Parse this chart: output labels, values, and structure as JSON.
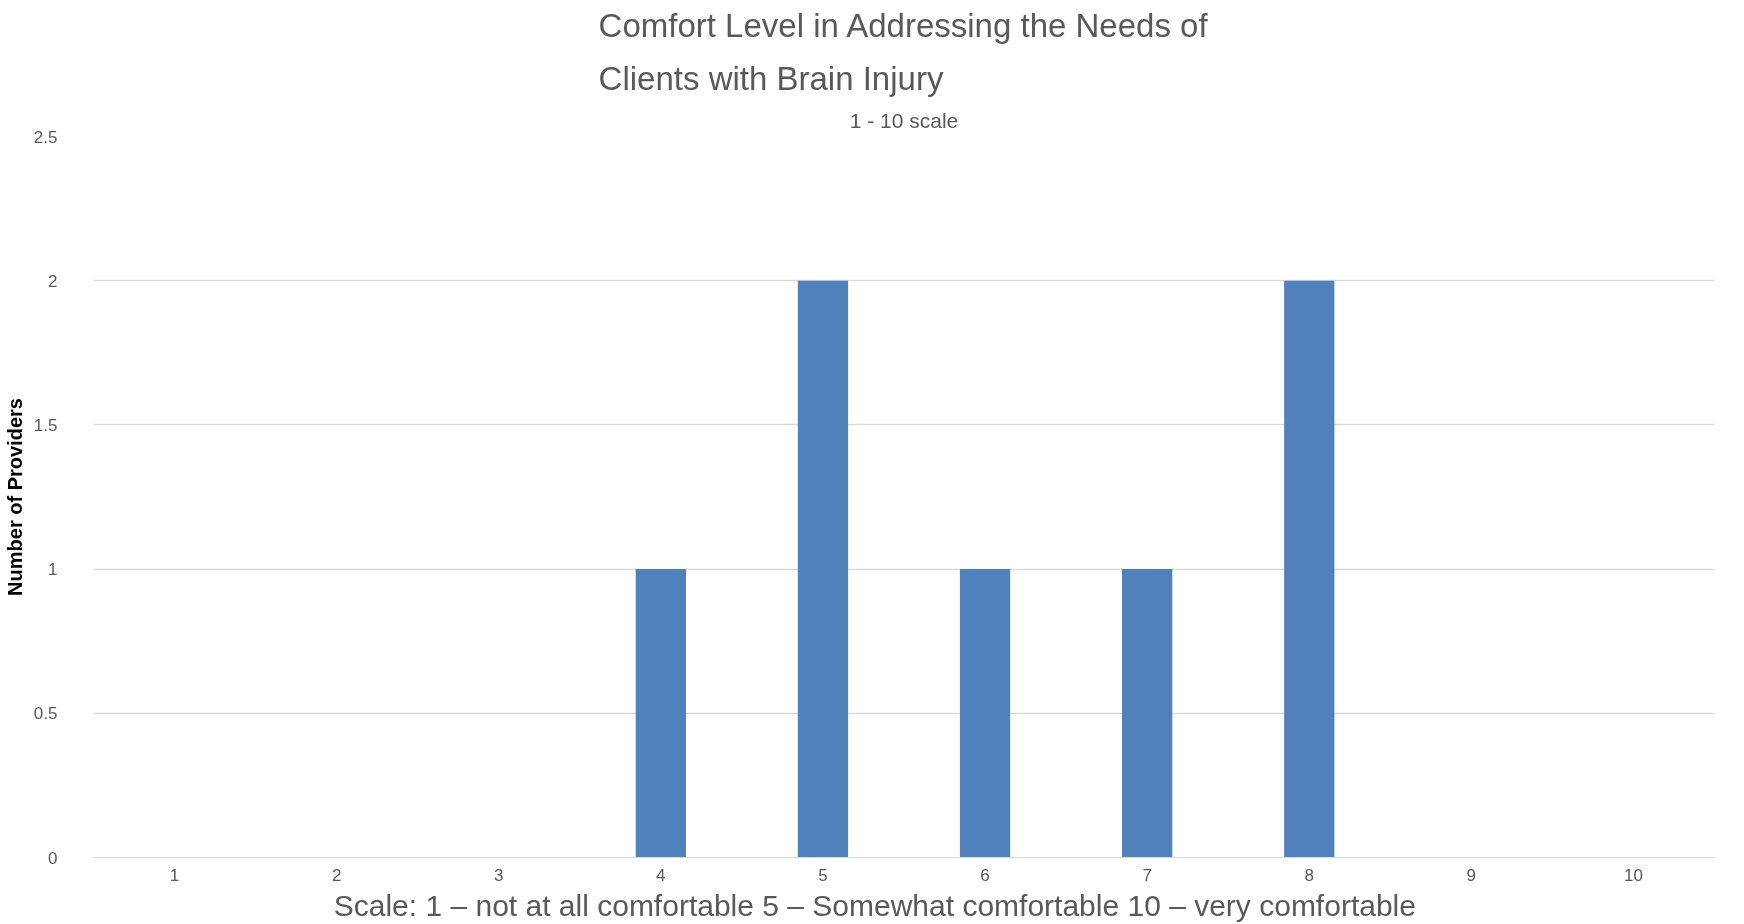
{
  "chart_data": {
    "type": "bar",
    "title": "Comfort Level in Addressing the Needs of\nClients with Brain Injury",
    "subtitle": "1 - 10 scale",
    "xlabel": "Scale: 1 – not at all comfortable     5 – Somewhat comfortable    10 – very comfortable",
    "ylabel": "Number of Providers",
    "categories": [
      "1",
      "2",
      "3",
      "4",
      "5",
      "6",
      "7",
      "8",
      "9",
      "10"
    ],
    "values": [
      0,
      0,
      0,
      1,
      2,
      1,
      1,
      2,
      0,
      0
    ],
    "color": "#4f81bd",
    "ylim": [
      0,
      2.5
    ],
    "yticks": [
      0,
      0.5,
      1,
      1.5,
      2,
      2.5
    ],
    "grid": "y"
  }
}
